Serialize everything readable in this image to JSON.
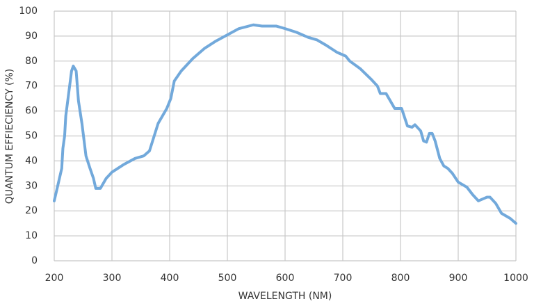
{
  "chart_data": {
    "type": "line",
    "x_label": "WAVELENGTH (NM)",
    "y_label": "QUANTUM EFFIECIENCY (%)",
    "x": [
      200,
      205,
      210,
      213,
      215,
      218,
      220,
      225,
      230,
      233,
      238,
      242,
      248,
      255,
      262,
      268,
      272,
      280,
      290,
      300,
      320,
      340,
      355,
      365,
      380,
      395,
      402,
      408,
      420,
      440,
      460,
      480,
      500,
      520,
      545,
      560,
      585,
      600,
      620,
      640,
      655,
      670,
      690,
      705,
      712,
      730,
      750,
      760,
      765,
      775,
      790,
      802,
      812,
      820,
      825,
      835,
      840,
      845,
      850,
      855,
      860,
      868,
      875,
      882,
      890,
      900,
      915,
      925,
      935,
      950,
      955,
      965,
      975,
      990,
      1000
    ],
    "values": [
      24,
      29,
      34,
      37,
      45,
      50,
      58,
      67,
      76,
      78,
      76,
      64,
      55,
      42,
      37,
      33,
      29,
      29,
      33,
      35.5,
      38.5,
      41,
      42,
      44,
      55,
      61,
      65,
      72,
      76,
      81,
      85,
      88,
      90.5,
      93,
      94.5,
      94,
      94,
      93,
      91.5,
      89.5,
      88.5,
      86.5,
      83.5,
      82,
      80,
      77,
      72.5,
      70,
      67,
      67,
      61,
      61,
      54,
      53.5,
      54.5,
      52,
      48,
      47.5,
      51,
      51,
      48,
      41,
      38,
      37,
      35,
      31.5,
      29.5,
      26.5,
      24,
      25.5,
      25.5,
      23,
      19,
      17,
      15
    ],
    "color": "#72a9db",
    "xlim": [
      200,
      1000
    ],
    "xticks": [
      200,
      300,
      400,
      500,
      600,
      700,
      800,
      900,
      1000
    ],
    "ylim": [
      0,
      100
    ],
    "yticks": [
      0,
      10,
      20,
      30,
      40,
      50,
      60,
      70,
      80,
      90,
      100
    ],
    "grid": true
  }
}
